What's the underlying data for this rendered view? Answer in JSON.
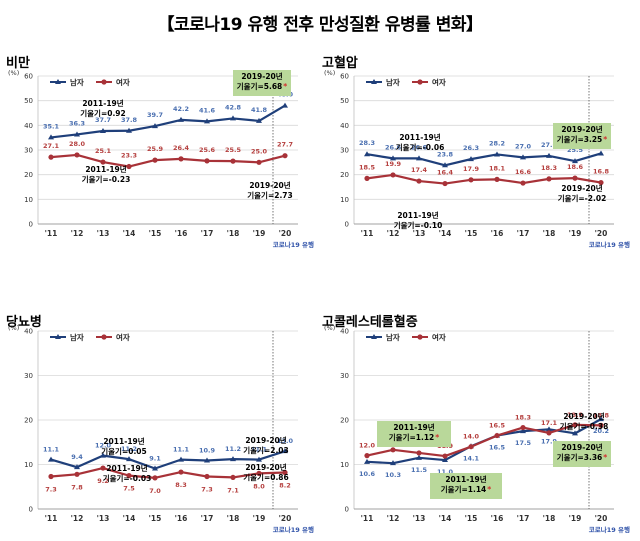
{
  "title": "【코로나19 유행 전후 만성질환 유병률 변화】",
  "colors": {
    "male": "#1f3f7a",
    "female": "#a83238",
    "label_male": "#4a6fb0",
    "label_female": "#b5403f",
    "annot_box_green": "#b9d89a",
    "covid_label": "#3355aa",
    "red_star": "#d0302f",
    "grid": "#d9d9d9"
  },
  "legend": {
    "male": "남자",
    "female": "여자"
  },
  "covid_label": "코로나19 유행",
  "chart_data": [
    {
      "type": "line",
      "title": "비만",
      "ylabel": "(%)",
      "ylim": [
        0,
        60
      ],
      "yticks": [
        0,
        10,
        20,
        30,
        40,
        50,
        60
      ],
      "grid": true,
      "legend_position": "top-left",
      "x": [
        "'11",
        "'12",
        "'13",
        "'14",
        "'15",
        "'16",
        "'17",
        "'18",
        "'19",
        "'20"
      ],
      "series": [
        {
          "name": "남자",
          "values": [
            35.1,
            36.3,
            37.7,
            37.8,
            39.7,
            42.2,
            41.6,
            42.8,
            41.8,
            48.0
          ]
        },
        {
          "name": "여자",
          "values": [
            27.1,
            28.0,
            25.1,
            23.3,
            25.9,
            26.4,
            25.6,
            25.5,
            25.0,
            27.7
          ]
        }
      ],
      "annotations": [
        {
          "lines": [
            "2011-19년",
            "기울기=0.92"
          ],
          "boxed": false,
          "star": false,
          "color": "#000000"
        },
        {
          "lines": [
            "2011-19년",
            "기울기=-0.23"
          ],
          "boxed": false,
          "star": false,
          "color": "#000000"
        },
        {
          "lines": [
            "2019-20년",
            "기울기=5.68"
          ],
          "boxed": true,
          "star": true,
          "color": "#000000"
        },
        {
          "lines": [
            "2019-20년",
            "기울기=2.73"
          ],
          "boxed": false,
          "star": false,
          "color": "#000000"
        }
      ]
    },
    {
      "type": "line",
      "title": "고혈압",
      "ylabel": "(%)",
      "ylim": [
        0,
        60
      ],
      "yticks": [
        0,
        10,
        20,
        30,
        40,
        50,
        60
      ],
      "grid": true,
      "legend_position": "top-left",
      "x": [
        "'11",
        "'12",
        "'13",
        "'14",
        "'15",
        "'16",
        "'17",
        "'18",
        "'19",
        "'20"
      ],
      "series": [
        {
          "name": "남자",
          "values": [
            28.3,
            26.6,
            26.6,
            23.8,
            26.3,
            28.2,
            27.0,
            27.6,
            25.5,
            28.6
          ]
        },
        {
          "name": "여자",
          "values": [
            18.5,
            19.9,
            17.4,
            16.4,
            17.9,
            18.1,
            16.6,
            18.3,
            18.6,
            16.8
          ]
        }
      ],
      "annotations": [
        {
          "lines": [
            "2011-19년",
            "기울기=-0.06"
          ],
          "boxed": false,
          "star": false,
          "color": "#000000"
        },
        {
          "lines": [
            "2019-20년",
            "기울기=3.25"
          ],
          "boxed": true,
          "star": true,
          "color": "#000000"
        },
        {
          "lines": [
            "2011-19년",
            "기울기=-0.10"
          ],
          "boxed": false,
          "star": false,
          "color": "#000000"
        },
        {
          "lines": [
            "2019-20년",
            "기울기=-2.02"
          ],
          "boxed": false,
          "star": false,
          "color": "#000000"
        }
      ]
    },
    {
      "type": "line",
      "title": "당뇨병",
      "ylabel": "(%)",
      "ylim": [
        0,
        40
      ],
      "yticks": [
        0,
        10,
        20,
        30,
        40
      ],
      "grid": true,
      "legend_position": "top-left",
      "x": [
        "'11",
        "'12",
        "'13",
        "'14",
        "'15",
        "'16",
        "'17",
        "'18",
        "'19",
        "'20"
      ],
      "series": [
        {
          "name": "남자",
          "values": [
            11.1,
            9.4,
            12.0,
            11.2,
            9.1,
            11.1,
            10.9,
            11.2,
            11.1,
            13.0
          ]
        },
        {
          "name": "여자",
          "values": [
            7.3,
            7.8,
            9.2,
            7.5,
            7.0,
            8.3,
            7.3,
            7.1,
            8.0,
            8.2
          ]
        }
      ],
      "annotations": [
        {
          "lines": [
            "2011-19년",
            "기울기=0.05"
          ],
          "boxed": false,
          "star": false,
          "color": "#000000"
        },
        {
          "lines": [
            "2011-19년",
            "기울기=-0.03"
          ],
          "boxed": false,
          "star": false,
          "color": "#000000"
        },
        {
          "lines": [
            "2019-20년",
            "기울기=2.03"
          ],
          "boxed": false,
          "star": false,
          "color": "#000000"
        },
        {
          "lines": [
            "2019-20년",
            "기울기=0.86"
          ],
          "boxed": false,
          "star": false,
          "color": "#000000"
        }
      ]
    },
    {
      "type": "line",
      "title": "고콜레스테롤혈증",
      "ylabel": "(%)",
      "ylim": [
        0,
        40
      ],
      "yticks": [
        0,
        10,
        20,
        30,
        40
      ],
      "grid": true,
      "legend_position": "top-left",
      "x": [
        "'11",
        "'12",
        "'13",
        "'14",
        "'15",
        "'16",
        "'17",
        "'18",
        "'19",
        "'20"
      ],
      "series": [
        {
          "name": "남자",
          "values": [
            10.6,
            10.3,
            11.5,
            11.0,
            14.1,
            16.5,
            17.5,
            17.9,
            17.0,
            20.2
          ]
        },
        {
          "name": "여자",
          "values": [
            12.0,
            13.3,
            12.6,
            11.9,
            14.0,
            16.5,
            18.3,
            17.1,
            18.9,
            18.8
          ]
        }
      ],
      "annotations": [
        {
          "lines": [
            "2011-19년",
            "기울기=1.12"
          ],
          "boxed": true,
          "star": true,
          "color": "#000000"
        },
        {
          "lines": [
            "2011-19년",
            "기울기=1.14"
          ],
          "boxed": true,
          "star": true,
          "color": "#000000"
        },
        {
          "lines": [
            "2019-20년",
            "기울기=-0.38"
          ],
          "boxed": false,
          "star": false,
          "color": "#000000"
        },
        {
          "lines": [
            "2019-20년",
            "기울기=3.36"
          ],
          "boxed": true,
          "star": true,
          "color": "#000000"
        }
      ]
    }
  ]
}
